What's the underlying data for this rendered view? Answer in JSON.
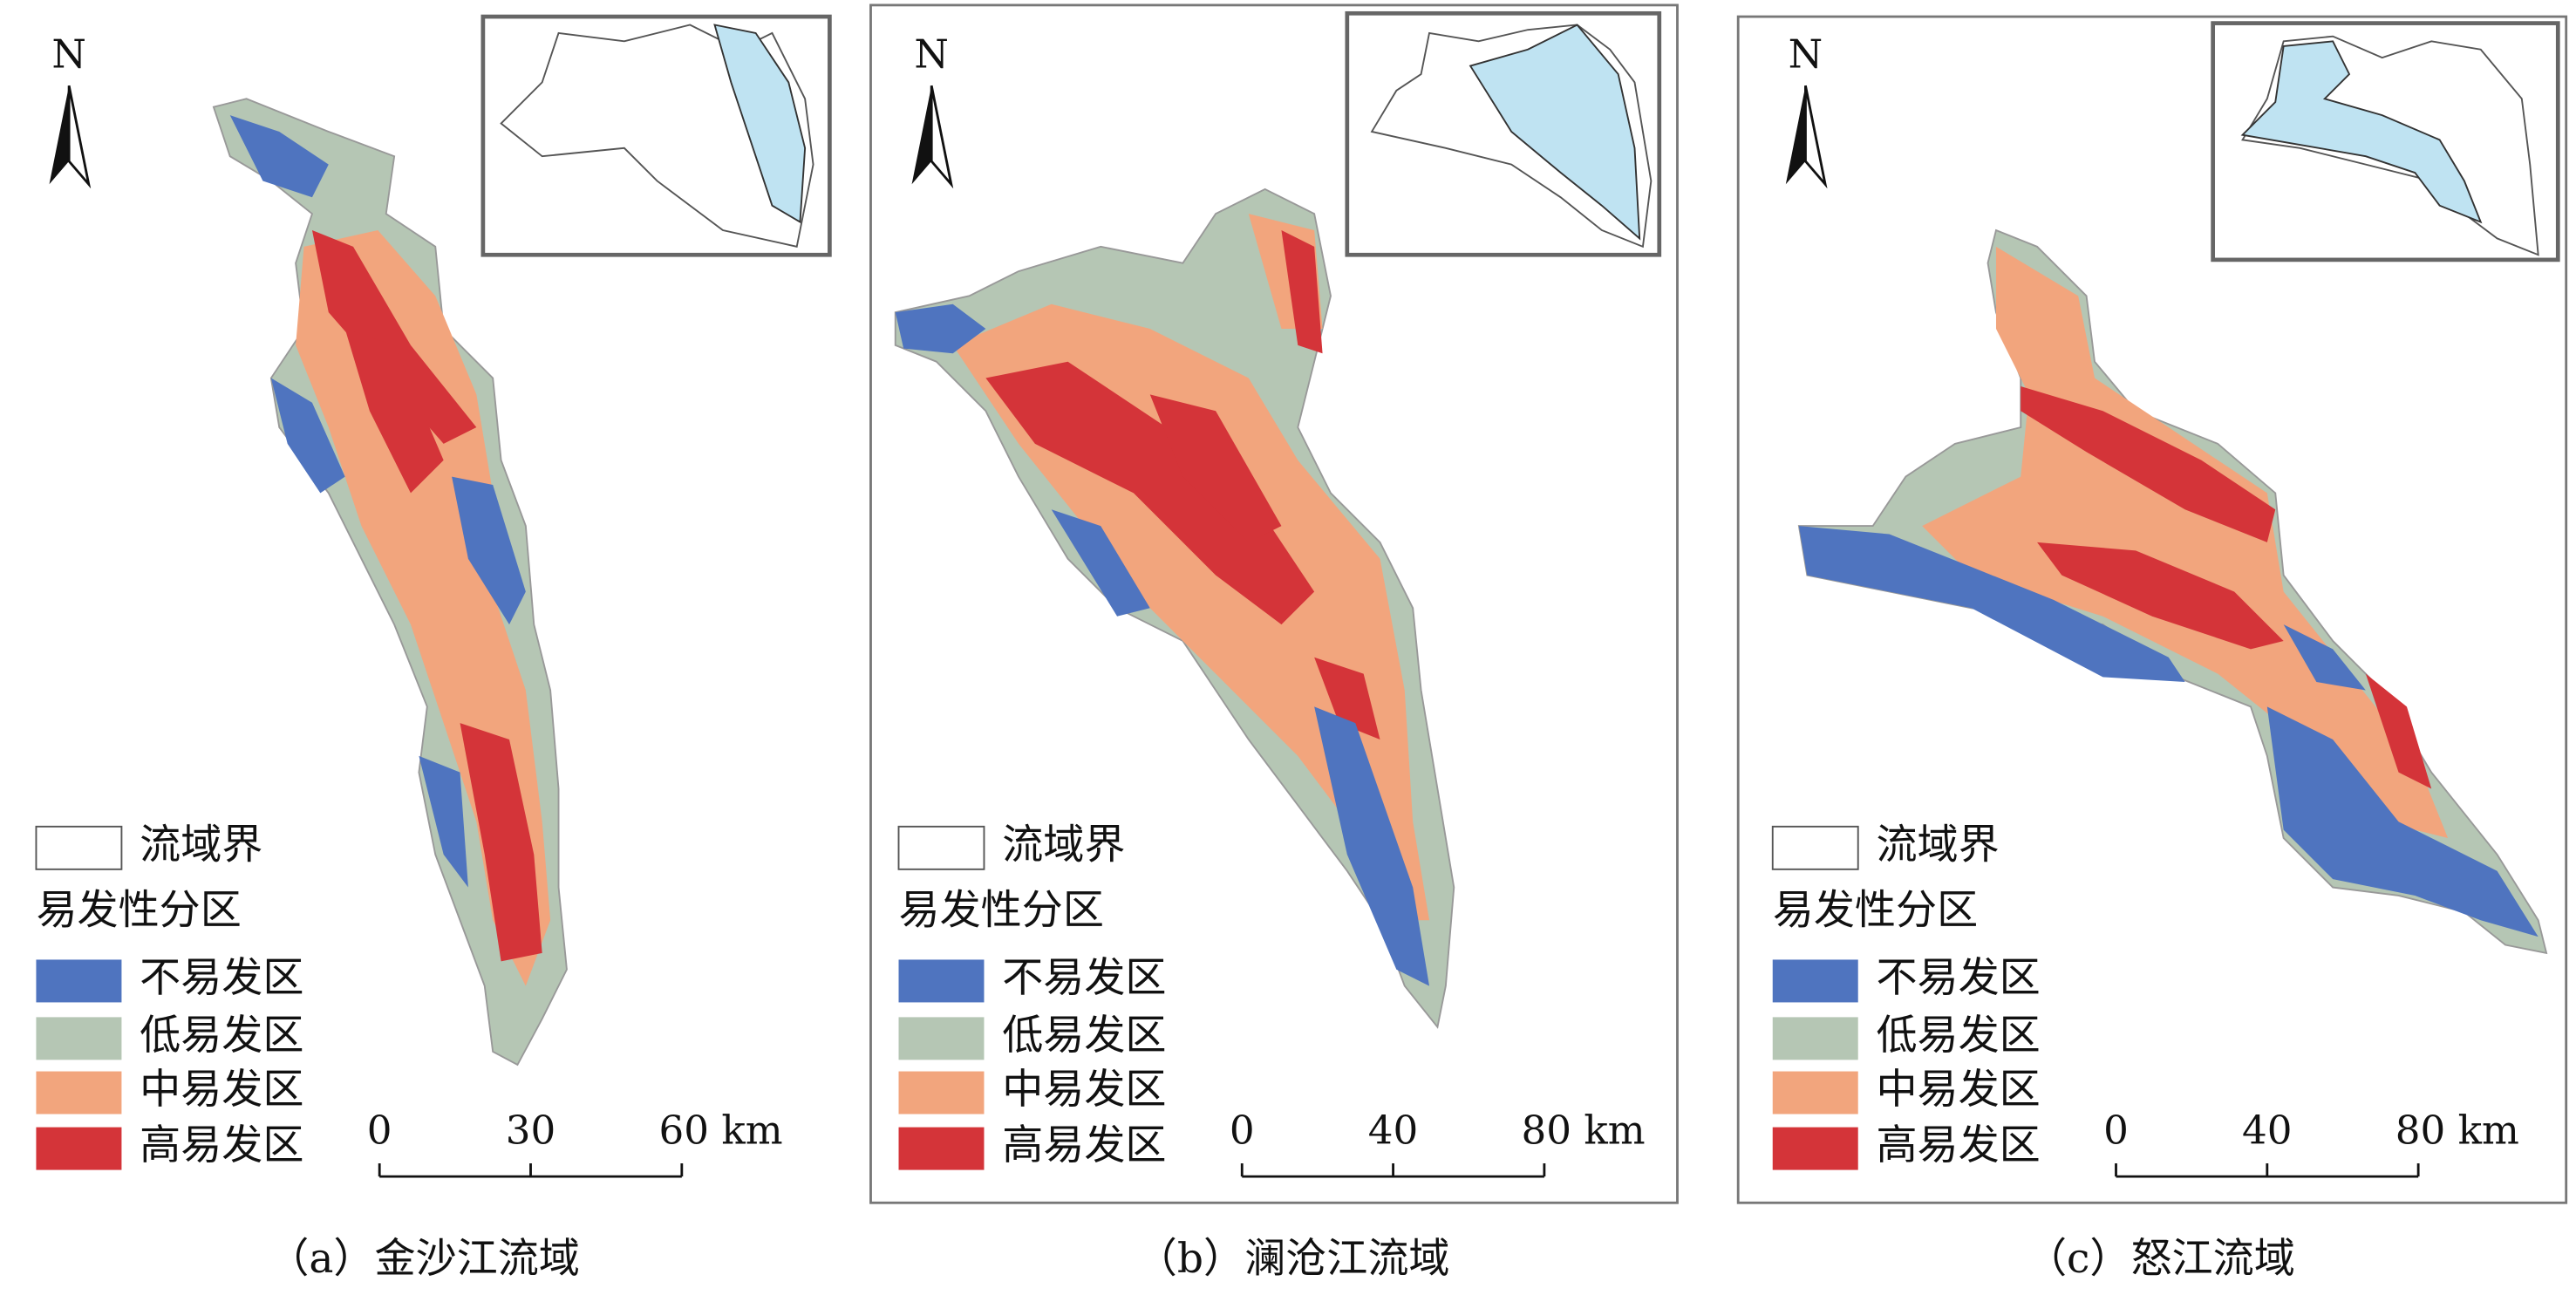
{
  "panels": [
    {
      "caption": "（a）金沙江流域",
      "north": "N",
      "legend": {
        "boundary": "流域界",
        "title": "易发性分区",
        "classes": [
          "不易发区",
          "低易发区",
          "中易发区",
          "高易发区"
        ]
      },
      "scale": [
        "0",
        "30",
        "60 km"
      ]
    },
    {
      "caption": "（b）澜沧江流域",
      "north": "N",
      "legend": {
        "boundary": "流域界",
        "title": "易发性分区",
        "classes": [
          "不易发区",
          "低易发区",
          "中易发区",
          "高易发区"
        ]
      },
      "scale": [
        "0",
        "40",
        "80 km"
      ]
    },
    {
      "caption": "（c）怒江流域",
      "north": "N",
      "legend": {
        "boundary": "流域界",
        "title": "易发性分区",
        "classes": [
          "不易发区",
          "低易发区",
          "中易发区",
          "高易发区"
        ]
      },
      "scale": [
        "0",
        "40",
        "80 km"
      ]
    }
  ]
}
